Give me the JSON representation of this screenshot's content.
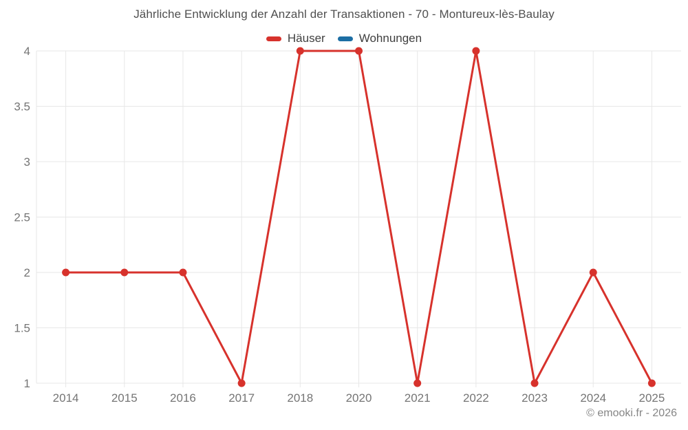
{
  "chart": {
    "title": "Jährliche Entwicklung der Anzahl der Transaktionen - 70 - Montureux-lès-Baulay",
    "footer": "© emooki.fr - 2026"
  },
  "legend": {
    "items": [
      {
        "label": "Häuser",
        "color": "#d7322c"
      },
      {
        "label": "Wohnungen",
        "color": "#1c6ea4"
      }
    ]
  },
  "chart_data": {
    "type": "line",
    "title": "Jährliche Entwicklung der Anzahl der Transaktionen - 70 - Montureux-lès-Baulay",
    "categories": [
      "2014",
      "2015",
      "2016",
      "2017",
      "2018",
      "2020",
      "2021",
      "2022",
      "2023",
      "2024",
      "2025"
    ],
    "series": [
      {
        "name": "Häuser",
        "color": "#d7322c",
        "values": [
          2,
          2,
          2,
          1,
          4,
          4,
          1,
          4,
          1,
          2,
          1
        ]
      },
      {
        "name": "Wohnungen",
        "color": "#1c6ea4",
        "values": []
      }
    ],
    "xlabel": "",
    "ylabel": "",
    "ylim": [
      1,
      4
    ],
    "yticks": [
      1,
      1.5,
      2,
      2.5,
      3,
      3.5,
      4
    ],
    "grid": true,
    "legend_position": "top",
    "colors": {
      "grid": "#e7e7e7",
      "tick_text": "#757575"
    }
  }
}
